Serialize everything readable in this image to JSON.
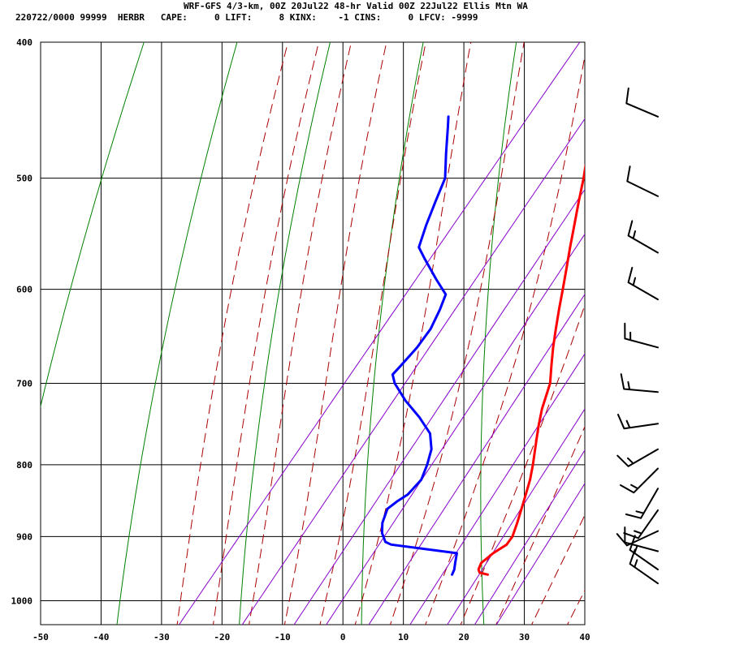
{
  "header": {
    "title": "WRF-GFS 4/3-km, 00Z 20Jul22 48-hr Valid 00Z 22Jul22 Ellis Mtn WA",
    "indices": "220722/0000 99999  HERBR   CAPE:     0 LIFT:     8 KINX:    -1 CINS:     0 LFCV: -9999"
  },
  "chart_data": {
    "type": "line",
    "subtype": "skew-t log-p sounding",
    "x_axis": {
      "label": "",
      "unit": "°C",
      "range": [
        -50,
        40
      ],
      "ticks": [
        -50,
        -40,
        -30,
        -20,
        -10,
        0,
        10,
        20,
        30,
        40
      ]
    },
    "y_axis": {
      "label": "",
      "unit": "hPa",
      "scale": "log",
      "range": [
        1040,
        400
      ],
      "inverted": true,
      "ticks": [
        400,
        500,
        600,
        700,
        800,
        900,
        1000
      ]
    },
    "grid": true,
    "colors": {
      "temperature": "#ff0000",
      "dewpoint": "#0000ff",
      "dry_adiabats": "#008000",
      "moist_adiabats": "#aa0000",
      "mixing_ratio": "#8800cc"
    },
    "series": [
      {
        "role": "temperature",
        "points": [
          {
            "p": 958,
            "t": 17.4
          },
          {
            "p": 955,
            "t": 15.8
          },
          {
            "p": 950,
            "t": 15.2
          },
          {
            "p": 940,
            "t": 14.8
          },
          {
            "p": 925,
            "t": 15.5
          },
          {
            "p": 912,
            "t": 16.6
          },
          {
            "p": 900,
            "t": 16.5
          },
          {
            "p": 880,
            "t": 15.5
          },
          {
            "p": 850,
            "t": 13.8
          },
          {
            "p": 820,
            "t": 12.0
          },
          {
            "p": 800,
            "t": 10.5
          },
          {
            "p": 770,
            "t": 8.0
          },
          {
            "p": 750,
            "t": 6.3
          },
          {
            "p": 730,
            "t": 4.7
          },
          {
            "p": 700,
            "t": 2.7
          },
          {
            "p": 680,
            "t": 0.6
          },
          {
            "p": 660,
            "t": -1.5
          },
          {
            "p": 640,
            "t": -3.5
          },
          {
            "p": 620,
            "t": -5.5
          },
          {
            "p": 600,
            "t": -7.5
          },
          {
            "p": 580,
            "t": -9.6
          },
          {
            "p": 560,
            "t": -11.8
          },
          {
            "p": 540,
            "t": -14.0
          },
          {
            "p": 520,
            "t": -16.3
          },
          {
            "p": 500,
            "t": -18.6
          },
          {
            "p": 480,
            "t": -21.2
          },
          {
            "p": 460,
            "t": -23.8
          },
          {
            "p": 452,
            "t": -25.0
          }
        ]
      },
      {
        "role": "dewpoint",
        "points": [
          {
            "p": 958,
            "t": 11.5
          },
          {
            "p": 950,
            "t": 11.2
          },
          {
            "p": 940,
            "t": 10.5
          },
          {
            "p": 925,
            "t": 9.5
          },
          {
            "p": 912,
            "t": -2.5
          },
          {
            "p": 908,
            "t": -3.8
          },
          {
            "p": 895,
            "t": -5.5
          },
          {
            "p": 880,
            "t": -6.8
          },
          {
            "p": 860,
            "t": -7.8
          },
          {
            "p": 850,
            "t": -7.2
          },
          {
            "p": 840,
            "t": -6.3
          },
          {
            "p": 820,
            "t": -6.0
          },
          {
            "p": 800,
            "t": -7.0
          },
          {
            "p": 780,
            "t": -8.3
          },
          {
            "p": 760,
            "t": -10.6
          },
          {
            "p": 740,
            "t": -14.5
          },
          {
            "p": 720,
            "t": -19.0
          },
          {
            "p": 700,
            "t": -23.0
          },
          {
            "p": 690,
            "t": -24.5
          },
          {
            "p": 680,
            "t": -24.3
          },
          {
            "p": 660,
            "t": -24.0
          },
          {
            "p": 640,
            "t": -24.2
          },
          {
            "p": 620,
            "t": -25.2
          },
          {
            "p": 605,
            "t": -26.2
          },
          {
            "p": 590,
            "t": -29.8
          },
          {
            "p": 570,
            "t": -34.5
          },
          {
            "p": 560,
            "t": -36.8
          },
          {
            "p": 540,
            "t": -38.5
          },
          {
            "p": 520,
            "t": -40.0
          },
          {
            "p": 500,
            "t": -41.5
          },
          {
            "p": 480,
            "t": -44.6
          },
          {
            "p": 460,
            "t": -47.7
          },
          {
            "p": 452,
            "t": -49.0
          }
        ]
      }
    ],
    "wind_barbs": [
      {
        "p": 452,
        "dir": 293,
        "speed_kt": 10
      },
      {
        "p": 515,
        "dir": 296,
        "speed_kt": 10
      },
      {
        "p": 565,
        "dir": 300,
        "speed_kt": 15
      },
      {
        "p": 610,
        "dir": 300,
        "speed_kt": 15
      },
      {
        "p": 660,
        "dir": 285,
        "speed_kt": 15
      },
      {
        "p": 710,
        "dir": 275,
        "speed_kt": 15
      },
      {
        "p": 748,
        "dir": 262,
        "speed_kt": 15
      },
      {
        "p": 780,
        "dir": 240,
        "speed_kt": 15
      },
      {
        "p": 805,
        "dir": 225,
        "speed_kt": 15
      },
      {
        "p": 832,
        "dir": 210,
        "speed_kt": 15
      },
      {
        "p": 862,
        "dir": 215,
        "speed_kt": 15
      },
      {
        "p": 892,
        "dir": 245,
        "speed_kt": 10
      },
      {
        "p": 922,
        "dir": 285,
        "speed_kt": 10
      },
      {
        "p": 950,
        "dir": 305,
        "speed_kt": 15
      },
      {
        "p": 972,
        "dir": 305,
        "speed_kt": 15
      }
    ]
  }
}
